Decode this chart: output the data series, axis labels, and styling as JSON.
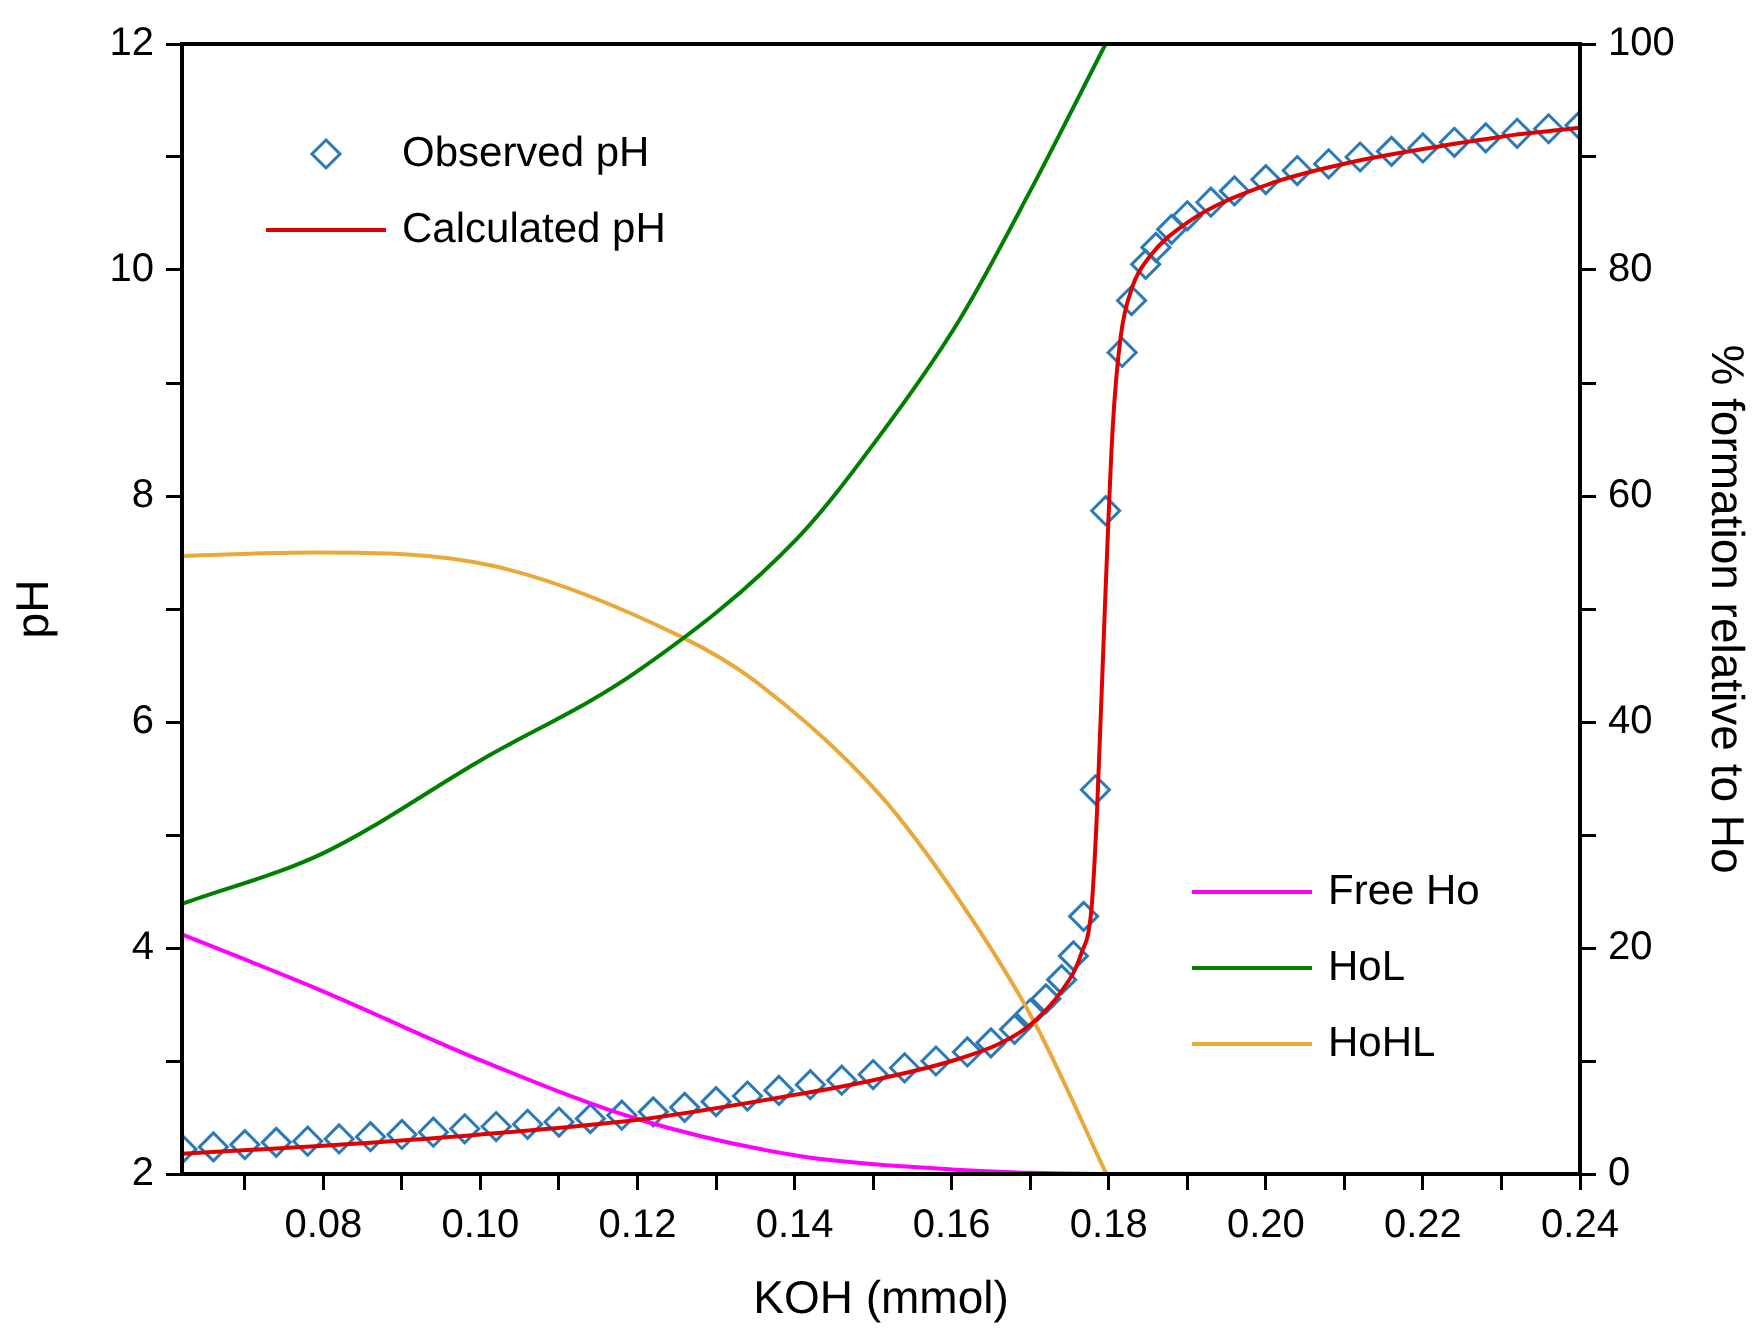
{
  "chart_data": {
    "type": "line",
    "xlabel": "KOH (mmol)",
    "ylabel": "pH",
    "y2label": "% formation relative to Ho",
    "xlim": [
      0.062,
      0.24
    ],
    "xticks": [
      {
        "value": 0.07,
        "label": null
      },
      0.08,
      {
        "value": 0.09,
        "label": null
      },
      {
        "value": 0.1,
        "label": "0.10"
      },
      {
        "value": 0.11,
        "label": null
      },
      0.12,
      {
        "value": 0.13,
        "label": null
      },
      0.14,
      {
        "value": 0.15,
        "label": null
      },
      0.16,
      {
        "value": 0.17,
        "label": null
      },
      0.18,
      {
        "value": 0.19,
        "label": null
      },
      {
        "value": 0.2,
        "label": "0.20"
      },
      {
        "value": 0.21,
        "label": null
      },
      0.22,
      {
        "value": 0.23,
        "label": null
      },
      0.24
    ],
    "ylim": [
      2,
      12
    ],
    "yticks": [
      2,
      {
        "value": 3,
        "label": null
      },
      4,
      {
        "value": 5,
        "label": null
      },
      6,
      {
        "value": 7,
        "label": null
      },
      8,
      {
        "value": 9,
        "label": null
      },
      10,
      {
        "value": 11,
        "label": null
      },
      12
    ],
    "y2lim": [
      0,
      100
    ],
    "y2ticks": [
      0,
      {
        "value": 10,
        "label": null
      },
      20,
      {
        "value": 30,
        "label": null
      },
      40,
      {
        "value": 50,
        "label": null
      },
      60,
      {
        "value": 70,
        "label": null
      },
      80,
      {
        "value": 90,
        "label": null
      },
      100
    ],
    "grid": false,
    "legend": "top left",
    "series": [
      {
        "name": "Observed pH",
        "type": "scatter",
        "marker": "diamond",
        "color": "#2a7ab9",
        "x": [
          0.062,
          0.066,
          0.07,
          0.074,
          0.078,
          0.082,
          0.086,
          0.09,
          0.094,
          0.098,
          0.102,
          0.106,
          0.11,
          0.114,
          0.118,
          0.122,
          0.126,
          0.13,
          0.134,
          0.138,
          0.142,
          0.146,
          0.15,
          0.154,
          0.158,
          0.162,
          0.165,
          0.168,
          0.17,
          0.172,
          0.174,
          0.1755,
          0.1768,
          0.1783,
          0.1796,
          0.1817,
          0.1829,
          0.1847,
          0.186,
          0.188,
          0.19,
          0.193,
          0.196,
          0.2,
          0.204,
          0.208,
          0.212,
          0.216,
          0.22,
          0.224,
          0.228,
          0.232,
          0.236,
          0.24
        ],
        "values": [
          2.22,
          2.24,
          2.26,
          2.28,
          2.29,
          2.31,
          2.33,
          2.35,
          2.37,
          2.4,
          2.42,
          2.44,
          2.46,
          2.49,
          2.52,
          2.55,
          2.59,
          2.64,
          2.69,
          2.74,
          2.79,
          2.83,
          2.88,
          2.94,
          3.0,
          3.08,
          3.16,
          3.28,
          3.42,
          3.55,
          3.72,
          3.93,
          4.28,
          5.4,
          7.87,
          9.27,
          9.73,
          10.05,
          10.2,
          10.36,
          10.48,
          10.6,
          10.7,
          10.8,
          10.88,
          10.94,
          11.0,
          11.05,
          11.08,
          11.13,
          11.17,
          11.21,
          11.25,
          11.28
        ]
      },
      {
        "name": "Calculated pH",
        "type": "line",
        "marker": "none",
        "color": "#e00000",
        "x": [
          0.062,
          0.08,
          0.1,
          0.12,
          0.14,
          0.15,
          0.16,
          0.166,
          0.17,
          0.174,
          0.1765,
          0.1778,
          0.1785,
          0.1795,
          0.1805,
          0.1815,
          0.183,
          0.185,
          0.19,
          0.2,
          0.21,
          0.22,
          0.23,
          0.24
        ],
        "values": [
          2.18,
          2.25,
          2.35,
          2.48,
          2.7,
          2.83,
          3.0,
          3.15,
          3.32,
          3.62,
          3.95,
          4.35,
          5.2,
          7.0,
          8.6,
          9.4,
          9.85,
          10.1,
          10.42,
          10.75,
          10.94,
          11.07,
          11.18,
          11.26
        ]
      },
      {
        "name": "Free Ho",
        "type": "line",
        "marker": "none",
        "axis": "y2",
        "color": "#ff00ff",
        "x": [
          0.062,
          0.0795,
          0.0999,
          0.1203,
          0.1406,
          0.16,
          0.17,
          0.18
        ],
        "values": [
          21.2,
          16.3,
          10.1,
          4.8,
          1.6,
          0.4,
          0.1,
          0
        ]
      },
      {
        "name": "HoL",
        "type": "line",
        "marker": "none",
        "axis": "y2",
        "color": "#008000",
        "x": [
          0.062,
          0.08,
          0.1,
          0.12,
          0.14,
          0.1508,
          0.161,
          0.17,
          0.1796
        ],
        "values": [
          23.9,
          28.4,
          36.6,
          44.5,
          56,
          65.3,
          75.6,
          87,
          100
        ]
      },
      {
        "name": "HoHL",
        "type": "line",
        "marker": "none",
        "axis": "y2",
        "color": "#e8a93a",
        "x": [
          0.062,
          0.0787,
          0.1017,
          0.1254,
          0.1348,
          0.1508,
          0.161,
          0.1704,
          0.1797
        ],
        "values": [
          54.7,
          55.0,
          53.8,
          47.6,
          43.7,
          33.6,
          24.2,
          13.6,
          0
        ]
      }
    ]
  }
}
